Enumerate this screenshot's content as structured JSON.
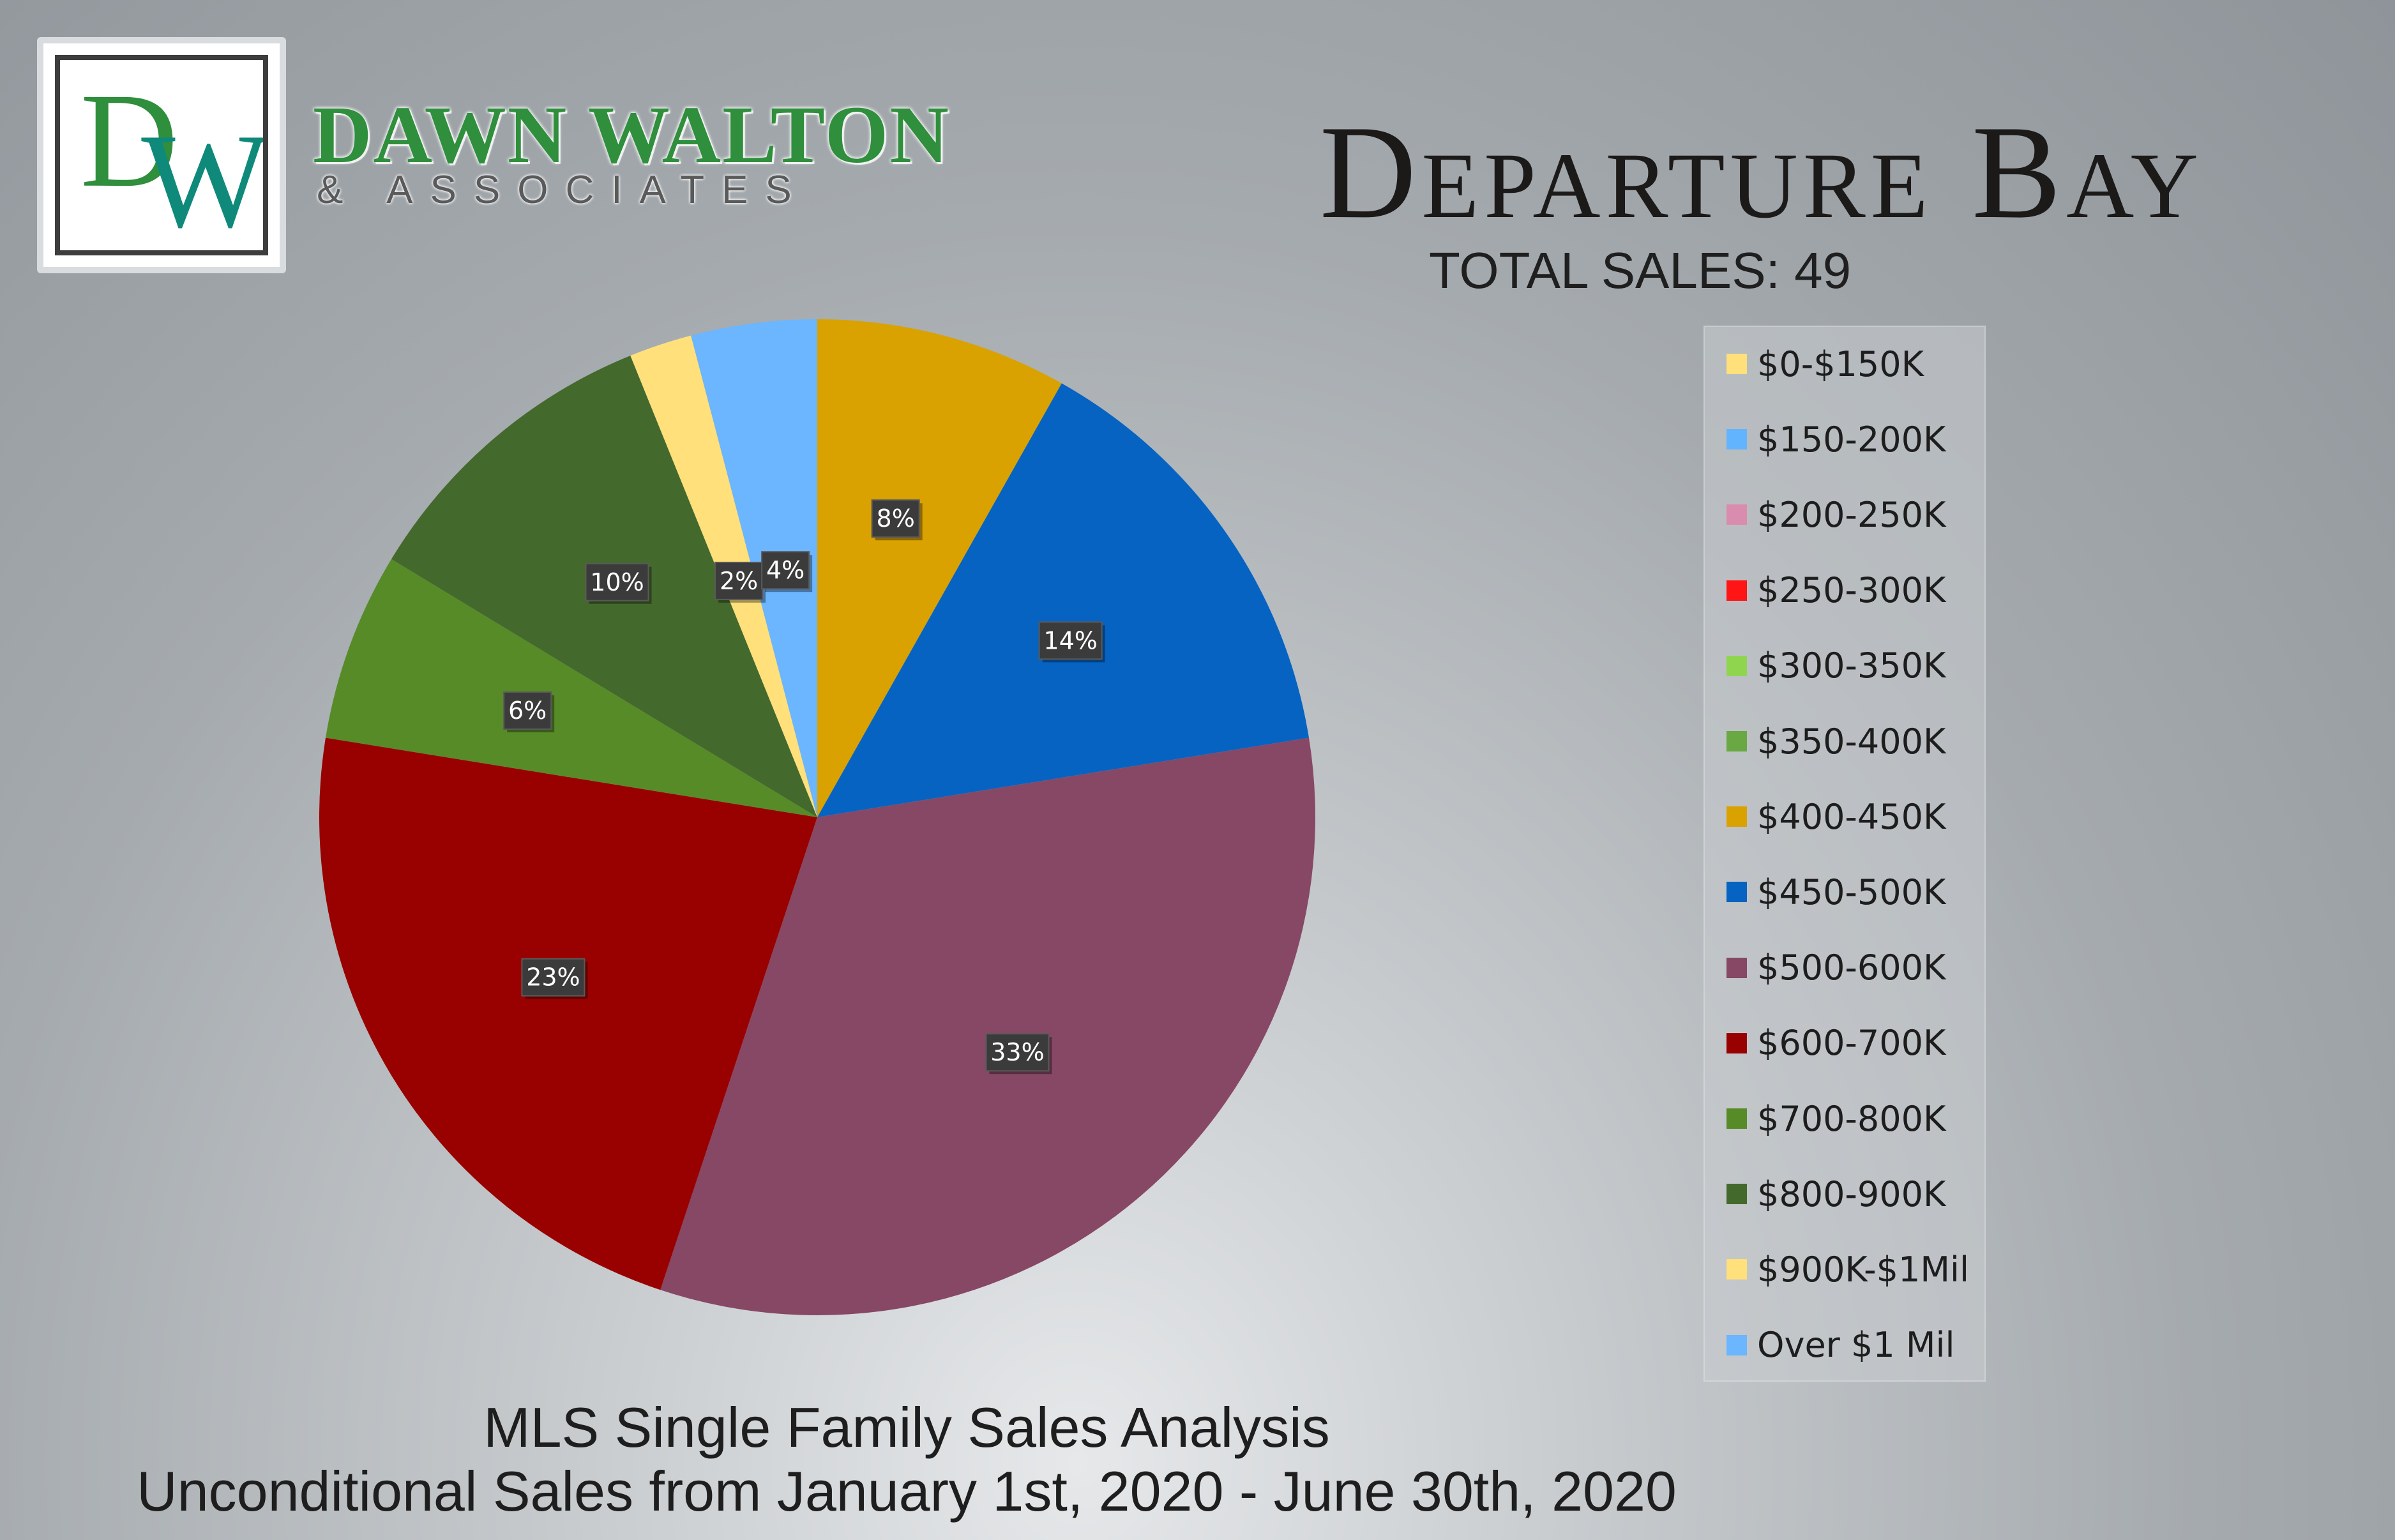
{
  "brand": {
    "monogram": "DW",
    "name": "DAWN WALTON",
    "sub": "& ASSOCIATES",
    "colors": {
      "green": "#2f8f3c",
      "teal": "#0f8a7a"
    }
  },
  "header": {
    "title": "Departure Bay",
    "total_sales": "TOTAL SALES: 49"
  },
  "footer": {
    "line1": "MLS Single Family Sales Analysis",
    "line2": "Unconditional Sales from January 1st, 2020 - June 30th, 2020"
  },
  "chart_data": {
    "type": "pie",
    "title": "Departure Bay",
    "total": 49,
    "legend_position": "right",
    "start_angle_deg": 0,
    "direction": "clockwise",
    "slices": [
      {
        "label": "$0-$150K",
        "value": 0,
        "percent": 0,
        "color": "#ffe07a"
      },
      {
        "label": "$150-200K",
        "value": 0,
        "percent": 0,
        "color": "#63b4ff"
      },
      {
        "label": "$200-250K",
        "value": 0,
        "percent": 0,
        "color": "#d98cae"
      },
      {
        "label": "$250-300K",
        "value": 0,
        "percent": 0,
        "color": "#ff1515"
      },
      {
        "label": "$300-350K",
        "value": 0,
        "percent": 0,
        "color": "#8fd64e"
      },
      {
        "label": "$350-400K",
        "value": 0,
        "percent": 0,
        "color": "#6aa843"
      },
      {
        "label": "$400-450K",
        "value": 4,
        "percent": 8,
        "color": "#d9a200"
      },
      {
        "label": "$450-500K",
        "value": 7,
        "percent": 14,
        "color": "#0663c2"
      },
      {
        "label": "$500-600K",
        "value": 16,
        "percent": 33,
        "color": "#864865"
      },
      {
        "label": "$600-700K",
        "value": 11,
        "percent": 23,
        "color": "#990000"
      },
      {
        "label": "$700-800K",
        "value": 3,
        "percent": 6,
        "color": "#578b27"
      },
      {
        "label": "$800-900K",
        "value": 5,
        "percent": 10,
        "color": "#44692c"
      },
      {
        "label": "$900K-$1Mil",
        "value": 1,
        "percent": 2,
        "color": "#ffe07a"
      },
      {
        "label": "Over $1 Mil",
        "value": 2,
        "percent": 4,
        "color": "#6cb5ff"
      }
    ]
  }
}
